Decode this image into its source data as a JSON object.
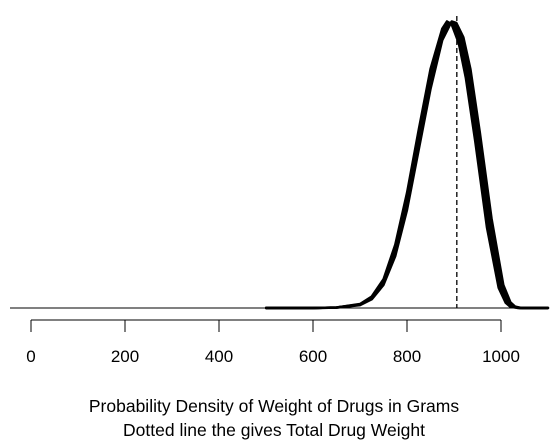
{
  "chart_data": {
    "type": "line",
    "title": "",
    "xlabel": [
      "Probability Density of Weight of Drugs in Grams",
      "Dotted line the gives Total Drug Weight"
    ],
    "ylabel": "",
    "xlim": [
      0,
      1100
    ],
    "ylim": [
      0,
      1.0
    ],
    "x_ticks": [
      0,
      200,
      400,
      600,
      800,
      1000
    ],
    "grid": false,
    "legend": "none",
    "line_color": "#000000",
    "reference_line": {
      "x": 906,
      "style": "dashed",
      "color": "#000000"
    },
    "series": [
      {
        "x": [
          500,
          600,
          650,
          700,
          725,
          750,
          775,
          800,
          825,
          850,
          875,
          890,
          900,
          915,
          930,
          950,
          975,
          1000,
          1015,
          1025,
          1040,
          1100
        ],
        "y": [
          0.0,
          0.0,
          0.002,
          0.012,
          0.035,
          0.09,
          0.2,
          0.37,
          0.58,
          0.79,
          0.95,
          0.99,
          0.985,
          0.93,
          0.82,
          0.6,
          0.3,
          0.08,
          0.02,
          0.005,
          0.0,
          0.0
        ]
      },
      {
        "x": [
          500,
          600,
          650,
          700,
          725,
          750,
          775,
          800,
          825,
          850,
          875,
          895,
          905,
          920,
          935,
          955,
          980,
          1005,
          1020,
          1030,
          1045,
          1100
        ],
        "y": [
          0.0,
          0.0,
          0.001,
          0.01,
          0.03,
          0.08,
          0.18,
          0.34,
          0.55,
          0.76,
          0.93,
          0.995,
          0.99,
          0.94,
          0.83,
          0.61,
          0.31,
          0.08,
          0.02,
          0.005,
          0.0,
          0.0
        ]
      },
      {
        "x": [
          500,
          600,
          650,
          700,
          725,
          750,
          775,
          800,
          825,
          850,
          875,
          885,
          895,
          910,
          925,
          945,
          970,
          995,
          1010,
          1020,
          1035,
          1100
        ],
        "y": [
          0.0,
          0.0,
          0.002,
          0.014,
          0.04,
          0.1,
          0.22,
          0.4,
          0.62,
          0.83,
          0.97,
          0.995,
          0.985,
          0.92,
          0.8,
          0.58,
          0.28,
          0.07,
          0.018,
          0.004,
          0.0,
          0.0
        ]
      },
      {
        "x": [
          500,
          600,
          650,
          700,
          725,
          750,
          775,
          800,
          825,
          850,
          875,
          892,
          902,
          918,
          933,
          952,
          978,
          1002,
          1017,
          1027,
          1042,
          1100
        ],
        "y": [
          0.0,
          0.0,
          0.001,
          0.011,
          0.032,
          0.085,
          0.19,
          0.355,
          0.565,
          0.775,
          0.94,
          0.99,
          0.99,
          0.935,
          0.825,
          0.605,
          0.305,
          0.08,
          0.02,
          0.005,
          0.0,
          0.0
        ]
      },
      {
        "x": [
          500,
          600,
          650,
          700,
          725,
          750,
          775,
          800,
          825,
          850,
          875,
          888,
          898,
          912,
          928,
          948,
          972,
          998,
          1012,
          1022,
          1038,
          1100
        ],
        "y": [
          0.0,
          0.0,
          0.002,
          0.013,
          0.038,
          0.095,
          0.21,
          0.385,
          0.6,
          0.81,
          0.96,
          0.99,
          0.985,
          0.925,
          0.81,
          0.59,
          0.29,
          0.075,
          0.019,
          0.0045,
          0.0,
          0.0
        ]
      }
    ]
  }
}
